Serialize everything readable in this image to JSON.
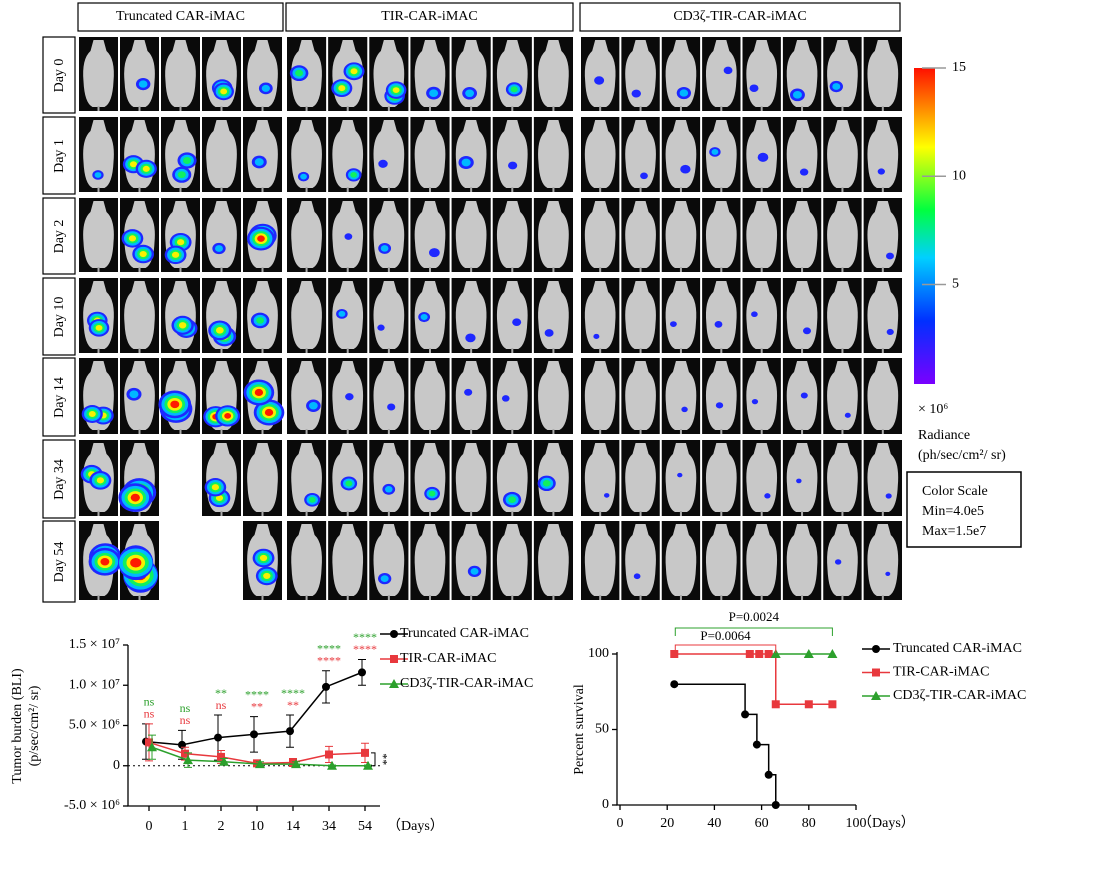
{
  "figure": {
    "groups": [
      "Truncated CAR-iMAC",
      "TIR-CAR-iMAC",
      "CD3ζ-TIR-CAR-iMAC"
    ],
    "days": [
      "Day 0",
      "Day 1",
      "Day 2",
      "Day 10",
      "Day 14",
      "Day 34",
      "Day 54"
    ],
    "colorbar": {
      "clim": [
        0.4,
        15
      ],
      "ticks": [
        5,
        10,
        15
      ],
      "multiplier": "× 10⁶",
      "title": "Radiance",
      "unit": "(ph/sec/cm²/ sr)"
    },
    "color_scale": {
      "title": "Color Scale",
      "min": "Min=4.0e5",
      "max": "Max=1.5e7"
    }
  },
  "chart_data": [
    {
      "type": "line",
      "y_label": [
        "Tumor burden (BLI)",
        "(p/sec/cm²/ sr)"
      ],
      "x_label": "（Days）",
      "categories": [
        "0",
        "1",
        "2",
        "10",
        "14",
        "34",
        "54"
      ],
      "ylim": [
        -5000000,
        15000000
      ],
      "yticks": [
        {
          "value": -5000000,
          "label": "-5.0 × 10⁶"
        },
        0,
        {
          "value": 5000000,
          "label": "5.0 × 10⁶"
        },
        {
          "value": 10000000,
          "label": "1.0 × 10⁷"
        },
        {
          "value": 15000000,
          "label": "1.5 × 10⁷"
        }
      ],
      "series": [
        {
          "name": "Truncated CAR-iMAC",
          "color": "#000000",
          "marker": "circle",
          "values": [
            3000000,
            2600000,
            3500000,
            3900000,
            4300000,
            9800000,
            11600000
          ],
          "errors": [
            2200000,
            1800000,
            2800000,
            2200000,
            2000000,
            2000000,
            1600000
          ]
        },
        {
          "name": "TIR-CAR-iMAC",
          "color": "#e8383d",
          "marker": "square",
          "values": [
            2900000,
            1500000,
            1100000,
            300000,
            400000,
            1400000,
            1600000
          ],
          "errors": [
            2300000,
            800000,
            800000,
            400000,
            500000,
            1000000,
            1200000
          ]
        },
        {
          "name": "CD3ζ-TIR-CAR-iMAC",
          "color": "#2ca02c",
          "marker": "triangle",
          "values": [
            2300000,
            700000,
            500000,
            200000,
            200000,
            0,
            0
          ],
          "errors": [
            1500000,
            900000,
            400000,
            300000,
            300000,
            100000,
            100000
          ]
        }
      ],
      "significance": [
        {
          "color": "#2ca02c",
          "labels": [
            "ns",
            "ns",
            "**",
            "****",
            "****",
            "****",
            "****"
          ]
        },
        {
          "color": "#e8383d",
          "labels": [
            "ns",
            "ns",
            "ns",
            "**",
            "**",
            "****",
            "****"
          ]
        }
      ],
      "pair_annotation": "**",
      "zero_line": true
    },
    {
      "type": "step",
      "y_label": "Percent survival",
      "x_label": "（Days）",
      "xlim": [
        0,
        100
      ],
      "xticks": [
        0,
        20,
        40,
        60,
        80,
        100
      ],
      "ylim": [
        0,
        100
      ],
      "yticks": [
        0,
        50,
        100
      ],
      "series": [
        {
          "name": "Truncated CAR-iMAC",
          "color": "#000000",
          "marker": "circle",
          "x": [
            23,
            53,
            58,
            63,
            66
          ],
          "values": [
            80,
            60,
            40,
            20,
            0
          ]
        },
        {
          "name": "TIR-CAR-iMAC",
          "color": "#e8383d",
          "marker": "square",
          "x": [
            23,
            55,
            59,
            63,
            66,
            80,
            90
          ],
          "values": [
            100,
            100,
            100,
            100,
            66.7,
            66.7,
            66.7
          ]
        },
        {
          "name": "CD3ζ-TIR-CAR-iMAC",
          "color": "#2ca02c",
          "marker": "triangle",
          "x": [
            66,
            80,
            90
          ],
          "values": [
            100,
            100,
            100
          ]
        }
      ],
      "comparisons": [
        {
          "label": "P=0.0024",
          "color": "#2ca02c",
          "x": [
            23,
            90
          ]
        },
        {
          "label": "P=0.0064",
          "color": "#e8383d",
          "x": [
            23,
            66
          ]
        }
      ]
    }
  ]
}
